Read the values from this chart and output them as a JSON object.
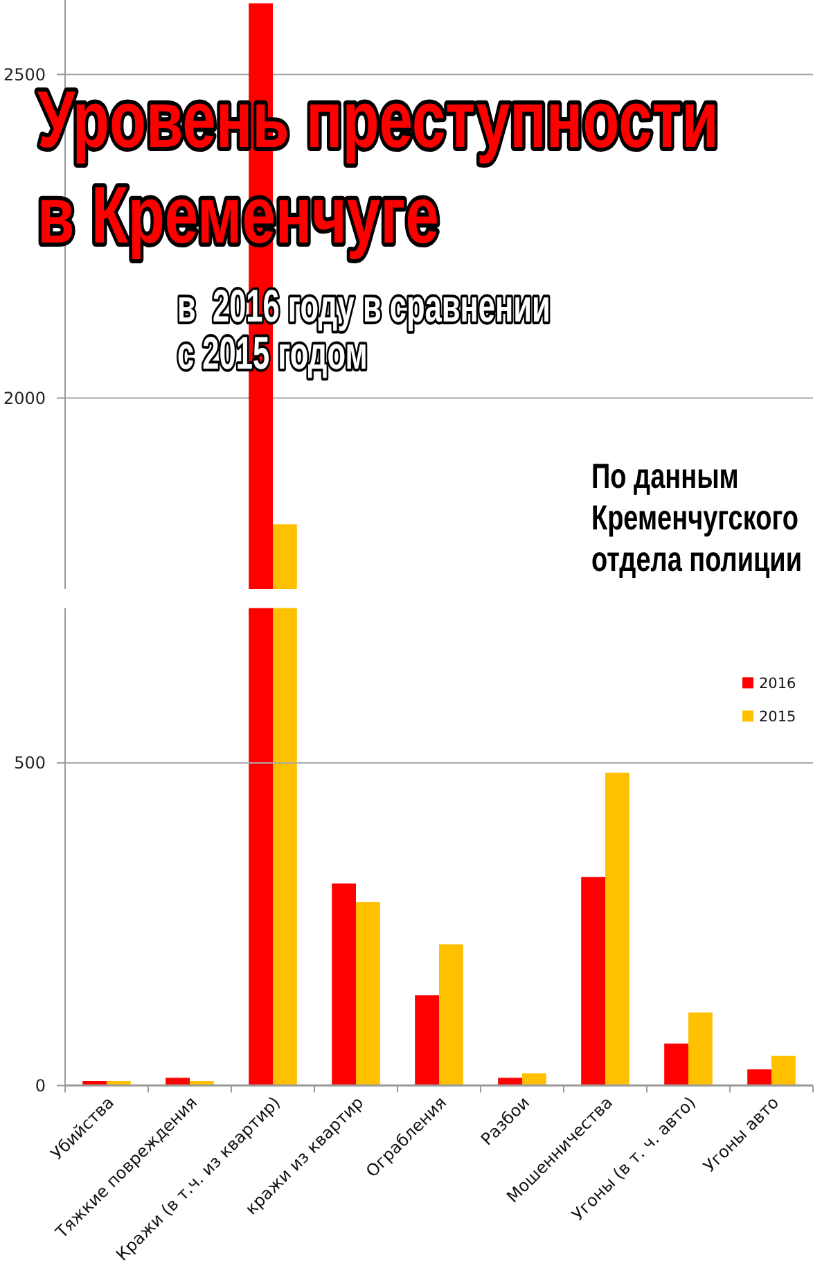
{
  "chart_data": [
    {
      "type": "bar",
      "title": "Уровень преступности в Кременчуге",
      "subtitle": "в  2016 году в сравнении с 2015 годом",
      "annotations": [
        "По данным Кременчугского отдела полиции"
      ],
      "categories": [
        null,
        null,
        null,
        null,
        null,
        null,
        null,
        null,
        null
      ],
      "series": [
        {
          "color": "#ff0000",
          "values": [
            null,
            null,
            2610,
            null,
            null,
            null,
            null,
            null,
            null
          ]
        },
        {
          "color": "#ffc000",
          "values": [
            null,
            null,
            1805,
            null,
            null,
            null,
            null,
            null,
            null
          ]
        }
      ],
      "ylim": [
        1705,
        2615
      ],
      "yticks": [
        2000,
        2500
      ],
      "grid": "y",
      "tick_labels": "y"
    },
    {
      "type": "bar",
      "categories": [
        "Убийства",
        "Тяжкие повреждения",
        "Кражи (в т.ч. из квартир)",
        "кражи из квартир",
        "Ограбления",
        "Разбои",
        "Мошенничества",
        "Угоны (в т. ч. авто)",
        "Угоны авто"
      ],
      "series": [
        {
          "name": "2016",
          "color": "#ff0000",
          "values": [
            7,
            12,
            null,
            313,
            140,
            12,
            323,
            65,
            25
          ]
        },
        {
          "name": "2015",
          "color": "#ffc000",
          "values": [
            7,
            7,
            null,
            284,
            219,
            19,
            485,
            113,
            46
          ]
        }
      ],
      "ylim": [
        0,
        740
      ],
      "yticks": [
        0,
        500
      ],
      "grid": "y",
      "legend": "top right"
    }
  ]
}
